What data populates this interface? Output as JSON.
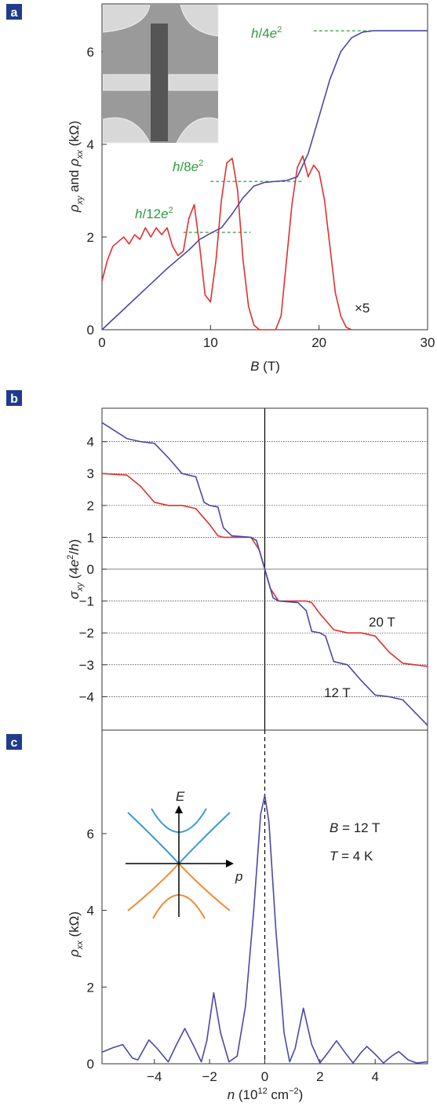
{
  "chart_data": [
    {
      "type": "line",
      "panel": "a",
      "xlim": [
        0,
        30
      ],
      "ylim": [
        0,
        7.03
      ],
      "xticks": [
        0,
        10,
        20,
        30
      ],
      "yticks": [
        0,
        2,
        4,
        6
      ],
      "xlabel": [
        "B",
        " (T)"
      ],
      "ylabel": [
        "ρ",
        "xy",
        " and ",
        "ρ",
        "xx",
        " (kΩ)"
      ],
      "series": [
        {
          "color": "#e03030",
          "x": [
            0,
            0.5,
            1,
            1.5,
            2,
            2.5,
            3,
            3.5,
            4,
            4.5,
            5,
            5.5,
            6,
            6.5,
            7,
            7.5,
            8,
            8.5,
            9,
            9.5,
            10,
            10.5,
            11,
            11.5,
            12,
            12.5,
            13,
            13.5,
            14,
            14.5,
            15,
            15.5,
            16,
            16.5,
            17,
            17.5,
            18,
            18.5,
            19,
            19.5,
            20,
            20.5,
            21,
            21.5,
            22,
            22.5,
            23
          ],
          "values": [
            1.05,
            1.5,
            1.8,
            1.9,
            2.0,
            1.85,
            2.05,
            1.95,
            2.2,
            2.0,
            2.2,
            2.05,
            2.2,
            1.8,
            1.6,
            1.7,
            2.4,
            2.7,
            1.8,
            0.75,
            0.6,
            1.5,
            2.8,
            3.6,
            3.7,
            3.0,
            1.5,
            0.5,
            0.1,
            0,
            0,
            0,
            0,
            0.3,
            1.5,
            2.7,
            3.5,
            3.75,
            3.3,
            3.55,
            3.4,
            2.8,
            1.8,
            0.8,
            0.3,
            0.05,
            0
          ]
        },
        {
          "color": "#4a48a8",
          "x": [
            0,
            1,
            2,
            3,
            4,
            5,
            6,
            7,
            8,
            9,
            10,
            11,
            12,
            13,
            14,
            15,
            16,
            17,
            18,
            19,
            20,
            21,
            22,
            23,
            24,
            25,
            26,
            27,
            28,
            29,
            30
          ],
          "values": [
            0,
            0.22,
            0.44,
            0.66,
            0.88,
            1.1,
            1.32,
            1.52,
            1.72,
            1.95,
            2.08,
            2.2,
            2.5,
            2.85,
            3.1,
            3.18,
            3.2,
            3.22,
            3.3,
            3.8,
            4.6,
            5.4,
            6.0,
            6.3,
            6.42,
            6.45,
            6.45,
            6.45,
            6.45,
            6.45,
            6.45
          ]
        }
      ],
      "annotations": [
        {
          "text": [
            "h",
            "/4",
            "e",
            "2"
          ],
          "y": 6.45,
          "x": [
            19.5,
            25
          ]
        },
        {
          "text": [
            "h",
            "/8",
            "e",
            "2"
          ],
          "y": 3.2,
          "x": [
            10,
            18.5
          ]
        },
        {
          "text": [
            "h",
            "/12",
            "e",
            "2"
          ],
          "y": 2.1,
          "x": [
            7.5,
            13.7
          ]
        }
      ],
      "note": "×5"
    },
    {
      "type": "line",
      "panel": "b",
      "xlim": [
        -5.9,
        5.9
      ],
      "ylim": [
        -5.05,
        5.05
      ],
      "grid": true,
      "yticks": [
        {
          "value": -4,
          "label": "−4"
        },
        {
          "value": -3,
          "label": "−3"
        },
        {
          "value": -2,
          "label": "−2"
        },
        {
          "value": -1,
          "label": "−1"
        },
        0,
        1,
        2,
        3,
        4
      ],
      "ylabel": [
        "σ",
        "xy",
        " (4",
        "e",
        "2",
        "/",
        "h",
        ")"
      ],
      "series": [
        {
          "name": "20 T",
          "color": "#e03030",
          "x": [
            -5.9,
            -5,
            -4.5,
            -4,
            -3.5,
            -3,
            -2.5,
            -2,
            -1.7,
            -1.5,
            -0.5,
            -0.2,
            0,
            0.2,
            0.5,
            1.5,
            1.7,
            2,
            2.5,
            3,
            3.5,
            4,
            4.5,
            5,
            5.9
          ],
          "values": [
            3.0,
            2.95,
            2.6,
            2.1,
            2.0,
            2.0,
            1.9,
            1.4,
            1.05,
            1.0,
            1.0,
            0.6,
            0,
            -0.6,
            -1,
            -1,
            -1.05,
            -1.4,
            -1.9,
            -2,
            -2,
            -2.1,
            -2.6,
            -2.95,
            -3.05
          ]
        },
        {
          "name": "12 T",
          "color": "#4a48a8",
          "x": [
            -5.9,
            -5,
            -4.5,
            -4,
            -3.5,
            -3,
            -2.5,
            -2.2,
            -2,
            -1.7,
            -1.5,
            -1.2,
            -0.5,
            -0.3,
            0,
            0.3,
            0.5,
            1.2,
            1.5,
            1.7,
            2,
            2.2,
            2.5,
            3,
            3.5,
            4,
            4.5,
            5,
            5.9
          ],
          "values": [
            4.6,
            4.1,
            4.0,
            3.95,
            3.5,
            3.0,
            2.9,
            2.1,
            2.0,
            1.95,
            1.3,
            1.05,
            1.0,
            0.9,
            0,
            -0.9,
            -1,
            -1.05,
            -1.3,
            -1.95,
            -2,
            -2.1,
            -2.9,
            -3,
            -3.5,
            -3.95,
            -4,
            -4.1,
            -4.9
          ]
        }
      ]
    },
    {
      "type": "line",
      "panel": "c",
      "xlim": [
        -5.9,
        5.9
      ],
      "ylim": [
        0,
        8.7
      ],
      "xticks": [
        {
          "value": -4,
          "label": "−4"
        },
        {
          "value": -2,
          "label": "−2"
        },
        0,
        2,
        4
      ],
      "yticks": [
        0,
        2,
        4,
        6
      ],
      "xlabel": [
        "n",
        " (10",
        "12",
        " cm",
        "−2",
        ")"
      ],
      "ylabel": [
        "ρ",
        "xx",
        " (kΩ)"
      ],
      "series": [
        {
          "color": "#4a48a8",
          "x": [
            -5.9,
            -5.5,
            -5.15,
            -4.8,
            -4.6,
            -4.2,
            -3.9,
            -3.5,
            -3.2,
            -2.9,
            -2.6,
            -2.3,
            -2.1,
            -1.85,
            -1.6,
            -1.3,
            -1.0,
            -0.7,
            -0.4,
            -0.15,
            0,
            0.15,
            0.4,
            0.7,
            0.9,
            1.1,
            1.4,
            1.7,
            2.0,
            2.3,
            2.6,
            2.9,
            3.2,
            3.5,
            3.7,
            4.0,
            4.3,
            4.6,
            4.85,
            5.2,
            5.5,
            5.9
          ],
          "values": [
            0.3,
            0.42,
            0.5,
            0.15,
            0.1,
            0.62,
            0.4,
            0.05,
            0.5,
            0.92,
            0.5,
            0.05,
            0.6,
            1.85,
            0.8,
            0.05,
            0.2,
            1.5,
            4.0,
            6.5,
            7.0,
            6.3,
            3.5,
            0.8,
            0.05,
            0.4,
            1.45,
            0.5,
            0.02,
            0.3,
            0.6,
            0.3,
            0.02,
            0.3,
            0.45,
            0.25,
            0.02,
            0.2,
            0.32,
            0.1,
            0.02,
            0.05
          ]
        }
      ],
      "annotations": [
        {
          "text": [
            "B",
            " = 12 T"
          ]
        },
        {
          "text": [
            "T",
            " = 4 K"
          ]
        }
      ],
      "inset": {
        "e_axis": "E",
        "p_axis": "p"
      }
    }
  ]
}
